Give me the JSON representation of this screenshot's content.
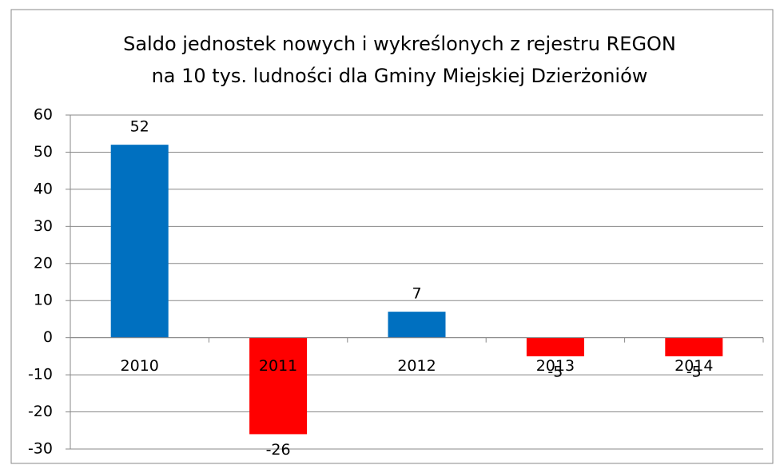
{
  "chart_data": {
    "type": "bar",
    "title": [
      "Saldo jednostek nowych i wykreślonych z rejestru REGON",
      "na 10 tys. ludności dla Gminy Miejskiej Dzierżoniów"
    ],
    "categories": [
      "2010",
      "2011",
      "2012",
      "2013",
      "2014"
    ],
    "values": [
      52,
      -26,
      7,
      -5,
      -5
    ],
    "colors": [
      "#0070c0",
      "#ff0000",
      "#0070c0",
      "#ff0000",
      "#ff0000"
    ],
    "ylim": [
      -30,
      60
    ],
    "yticks": [
      -30,
      -20,
      -10,
      0,
      10,
      20,
      30,
      40,
      50,
      60
    ],
    "grid": true
  }
}
